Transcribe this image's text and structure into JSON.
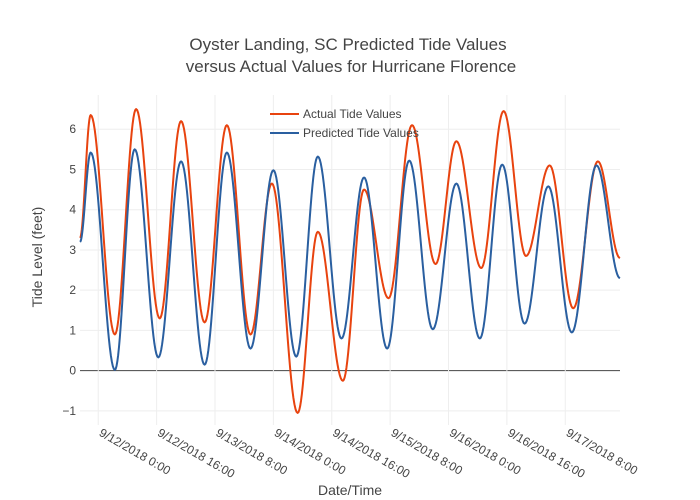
{
  "chart_data": {
    "type": "line",
    "title_lines": [
      "Oyster Landing, SC Predicted Tide Values",
      "versus Actual Values for Hurricane Florence"
    ],
    "xlabel": "Date/Time",
    "ylabel": "Tide Level (feet)",
    "x_range": [
      "9/11/2018 19:00",
      "9/17/2018 23:00"
    ],
    "x_ticks": [
      {
        "at": "9/12/2018 0:00",
        "label": "9/12/2018 0:00"
      },
      {
        "at": "9/12/2018 16:00",
        "label": "9/12/2018 16:00"
      },
      {
        "at": "9/13/2018 8:00",
        "label": "9/13/2018 8:00"
      },
      {
        "at": "9/14/2018 0:00",
        "label": "9/14/2018 0:00"
      },
      {
        "at": "9/14/2018 16:00",
        "label": "9/14/2018 16:00"
      },
      {
        "at": "9/15/2018 8:00",
        "label": "9/15/2018 8:00"
      },
      {
        "at": "9/16/2018 0:00",
        "label": "9/16/2018 0:00"
      },
      {
        "at": "9/16/2018 16:00",
        "label": "9/16/2018 16:00"
      },
      {
        "at": "9/17/2018 8:00",
        "label": "9/17/2018 8:00"
      }
    ],
    "ylim": [
      -1.35,
      6.85
    ],
    "y_ticks": [
      -1,
      0,
      1,
      2,
      3,
      4,
      5,
      6
    ],
    "y_tick_labels": [
      "−1",
      "0",
      "1",
      "2",
      "3",
      "4",
      "5",
      "6"
    ],
    "grid": true,
    "legend_position": "top-center",
    "series": [
      {
        "name": "Actual Tide Values",
        "color": "#e8430f",
        "extrema": [
          [
            "9/11/2018 19:00",
            3.3
          ],
          [
            "9/11/2018 21:56",
            6.35
          ],
          [
            "9/12/2018 4:33",
            0.9
          ],
          [
            "9/12/2018 10:23",
            6.5
          ],
          [
            "9/12/2018 16:51",
            1.3
          ],
          [
            "9/12/2018 22:42",
            6.2
          ],
          [
            "9/13/2018 5:09",
            1.2
          ],
          [
            "9/13/2018 11:15",
            6.1
          ],
          [
            "9/13/2018 17:44",
            0.9
          ],
          [
            "9/13/2018 23:35",
            4.65
          ],
          [
            "9/14/2018 6:39",
            -1.05
          ],
          [
            "9/14/2018 12:11",
            3.45
          ],
          [
            "9/14/2018 19:03",
            -0.25
          ],
          [
            "9/15/2018 0:51",
            4.5
          ],
          [
            "9/15/2018 7:34",
            1.8
          ],
          [
            "9/15/2018 14:00",
            6.1
          ],
          [
            "9/15/2018 20:27",
            2.65
          ],
          [
            "9/16/2018 2:09",
            5.7
          ],
          [
            "9/16/2018 8:58",
            2.55
          ],
          [
            "9/16/2018 15:06",
            6.45
          ],
          [
            "9/16/2018 21:14",
            2.85
          ],
          [
            "9/17/2018 3:44",
            5.1
          ],
          [
            "9/17/2018 10:11",
            1.55
          ],
          [
            "9/17/2018 16:56",
            5.2
          ],
          [
            "9/17/2018 23:00",
            2.8
          ]
        ]
      },
      {
        "name": "Predicted Tide Values",
        "color": "#2a5fa0",
        "extrema": [
          [
            "9/11/2018 19:00",
            3.2
          ],
          [
            "9/11/2018 21:56",
            5.42
          ],
          [
            "9/12/2018 4:33",
            0.02
          ],
          [
            "9/12/2018 10:00",
            5.5
          ],
          [
            "9/12/2018 16:28",
            0.33
          ],
          [
            "9/12/2018 22:42",
            5.2
          ],
          [
            "9/13/2018 5:09",
            0.15
          ],
          [
            "9/13/2018 11:15",
            5.42
          ],
          [
            "9/13/2018 17:44",
            0.55
          ],
          [
            "9/14/2018 0:00",
            4.98
          ],
          [
            "9/14/2018 6:16",
            0.35
          ],
          [
            "9/14/2018 12:11",
            5.32
          ],
          [
            "9/14/2018 18:40",
            0.8
          ],
          [
            "9/15/2018 0:51",
            4.8
          ],
          [
            "9/15/2018 7:11",
            0.55
          ],
          [
            "9/15/2018 13:14",
            5.22
          ],
          [
            "9/15/2018 19:41",
            1.03
          ],
          [
            "9/16/2018 2:09",
            4.65
          ],
          [
            "9/16/2018 8:35",
            0.8
          ],
          [
            "9/16/2018 14:43",
            5.12
          ],
          [
            "9/16/2018 20:51",
            1.17
          ],
          [
            "9/17/2018 3:21",
            4.58
          ],
          [
            "9/17/2018 9:48",
            0.95
          ],
          [
            "9/17/2018 16:33",
            5.1
          ],
          [
            "9/17/2018 23:00",
            2.3
          ]
        ]
      }
    ]
  }
}
